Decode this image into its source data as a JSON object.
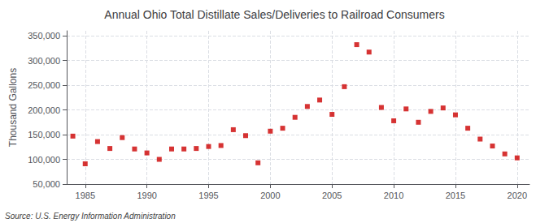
{
  "chart_data": {
    "type": "scatter",
    "title": "Annual Ohio Total Distillate Sales/Deliveries to Railroad Consumers",
    "ylabel": "Thousand Gallons",
    "annotation": "Source: U.S. Energy Information Administration",
    "x": [
      1984,
      1985,
      1986,
      1987,
      1988,
      1989,
      1990,
      1991,
      1992,
      1993,
      1994,
      1995,
      1996,
      1997,
      1998,
      1999,
      2000,
      2001,
      2002,
      2003,
      2004,
      2005,
      2006,
      2007,
      2008,
      2009,
      2010,
      2011,
      2012,
      2013,
      2014,
      2015,
      2016,
      2017,
      2018,
      2019,
      2020
    ],
    "values": [
      147000,
      91000,
      136000,
      122000,
      144000,
      121000,
      113000,
      100000,
      121000,
      121000,
      122000,
      126000,
      128000,
      160000,
      148000,
      93000,
      157000,
      163000,
      185000,
      207000,
      220000,
      191000,
      247000,
      332000,
      317000,
      205000,
      178000,
      202000,
      175000,
      197000,
      204000,
      190000,
      163000,
      141000,
      127000,
      111000,
      103000
    ],
    "color": "#cc0000",
    "marker": "square",
    "grid": true,
    "xlim": [
      1983.5,
      2021
    ],
    "xticks": [
      1985,
      1990,
      1995,
      2000,
      2005,
      2010,
      2015,
      2020
    ],
    "ylim": [
      50000,
      360000
    ],
    "yticks": [
      {
        "value": 50000,
        "label": "50,000"
      },
      {
        "value": 100000,
        "label": "100,000"
      },
      {
        "value": 150000,
        "label": "150,000"
      },
      {
        "value": 200000,
        "label": "200,000"
      },
      {
        "value": 250000,
        "label": "250,000"
      },
      {
        "value": 300000,
        "label": "300,000"
      },
      {
        "value": 350000,
        "label": "350,000"
      }
    ]
  }
}
